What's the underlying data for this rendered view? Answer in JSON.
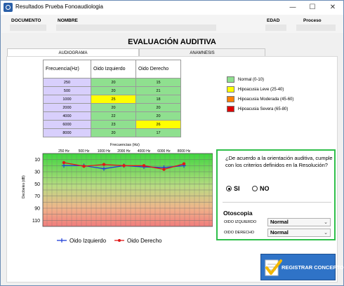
{
  "window": {
    "title": "Resultados Prueba Fonoaudiologia",
    "minimize": "—",
    "maximize": "☐",
    "close": "✕"
  },
  "header": {
    "documento_label": "DOCUMENTO",
    "nombre_label": "NOMBRE",
    "edad_label": "EDAD",
    "proceso_label": "Proceso"
  },
  "main_title": "EVALUACIÓN AUDITIVA",
  "tabs": [
    {
      "label": "AUDIOGRAMA",
      "active": true
    },
    {
      "label": "ANAMNESIS",
      "active": false
    }
  ],
  "table": {
    "headers": [
      "Frecuencia(Hz)",
      "Oido Izquierdo",
      "Oido Derecho"
    ],
    "rows": [
      {
        "freq": "250",
        "left": "20",
        "right": "15",
        "left_color": "#8fe08f",
        "right_color": "#8fe08f"
      },
      {
        "freq": "500",
        "left": "20",
        "right": "21",
        "left_color": "#8fe08f",
        "right_color": "#8fe08f"
      },
      {
        "freq": "1000",
        "left": "25",
        "right": "18",
        "left_color": "#ffff00",
        "right_color": "#8fe08f"
      },
      {
        "freq": "2000",
        "left": "20",
        "right": "20",
        "left_color": "#8fe08f",
        "right_color": "#8fe08f"
      },
      {
        "freq": "4000",
        "left": "22",
        "right": "20",
        "left_color": "#8fe08f",
        "right_color": "#8fe08f"
      },
      {
        "freq": "6000",
        "left": "23",
        "right": "26",
        "left_color": "#8fe08f",
        "right_color": "#ffff00"
      },
      {
        "freq": "8000",
        "left": "20",
        "right": "17",
        "left_color": "#8fe08f",
        "right_color": "#8fe08f"
      }
    ]
  },
  "legend": [
    {
      "label": "Normal (0-10)",
      "color": "#8fe08f"
    },
    {
      "label": "Hipoacusia Leve (25-40)",
      "color": "#ffff00"
    },
    {
      "label": "Hipoacusia Moderada (45-60)",
      "color": "#ff8000"
    },
    {
      "label": "Hipoacusia Severa (65-80)",
      "color": "#e00000"
    }
  ],
  "chart_data": {
    "type": "line",
    "xlabel": "Frecuencias (Hz)",
    "ylabel": "Decibeles (dB)",
    "categories": [
      "250 Hz",
      "500 Hz",
      "1000 Hz",
      "2000 Hz",
      "4000 Hz",
      "6000 Hz",
      "8000 Hz"
    ],
    "yticks": [
      10,
      30,
      50,
      70,
      90,
      110
    ],
    "ylim": [
      0,
      120
    ],
    "y_inverted": true,
    "series": [
      {
        "name": "Oido Izquierdo",
        "color": "#1f3fd9",
        "marker": "cross",
        "values": [
          20,
          20,
          25,
          20,
          22,
          23,
          20
        ]
      },
      {
        "name": "Oido Derecho",
        "color": "#e01818",
        "marker": "dot",
        "values": [
          15,
          21,
          18,
          20,
          20,
          26,
          17
        ]
      }
    ]
  },
  "panel": {
    "question": "¿De acuerdo a la orientación auditiva, cumple con los criterios definidos en la Resolución?",
    "si_label": "SI",
    "no_label": "NO",
    "selected": "SI",
    "otoscopia_title": "Otoscopia",
    "izq_label": "OIDO IZQUIERDO",
    "izq_value": "Normal",
    "der_label": "OIDO DERECHO",
    "der_value": "Normal"
  },
  "button": {
    "label": "REGISTRAR CONCEPTO"
  }
}
